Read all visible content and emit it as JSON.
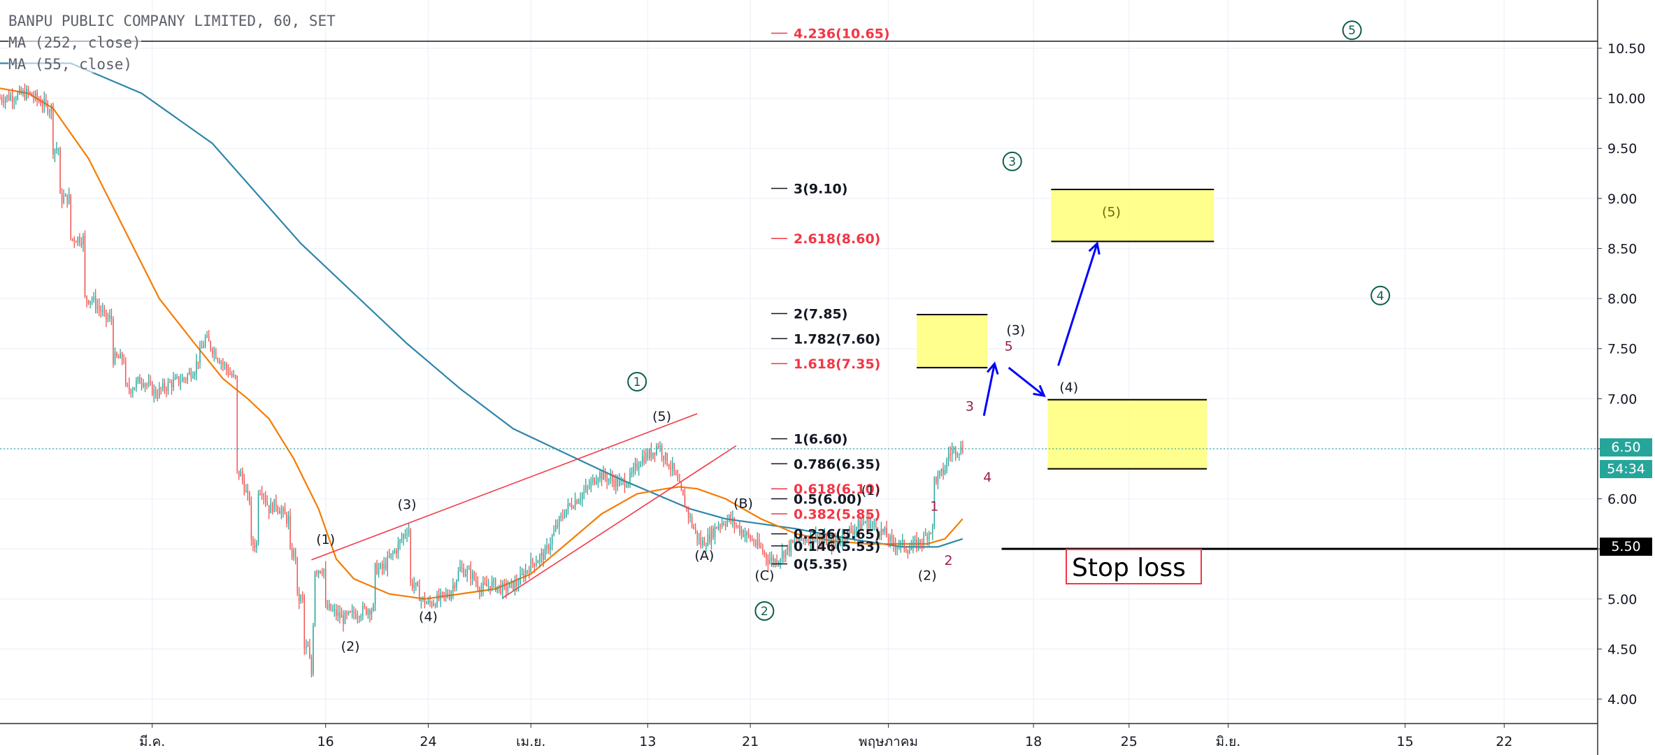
{
  "header": {
    "title": "BANPU PUBLIC COMPANY LIMITED, 60, SET",
    "ma1": "MA (252, close)",
    "ma2": "MA (55, close)"
  },
  "price_tags": {
    "last_price": "6.50",
    "countdown": "54:34",
    "stop_price": "5.50"
  },
  "colors": {
    "up_candle": "#26a69a",
    "down_candle": "#ef5350",
    "ma252": "#2e86ab",
    "ma55": "#f57c00",
    "fib_black": "#131722",
    "fib_red": "#f23645",
    "wave_red": "#9c1b4c",
    "arrow": "#0000ff",
    "target_box": "#ffff7a",
    "last_price_tag": "#26a69a",
    "stop_tag": "#000000"
  },
  "chart_data": {
    "type": "candlestick",
    "timeframe": "60",
    "y_axis": {
      "ticks": [
        "4.00",
        "4.50",
        "5.00",
        "5.50",
        "6.00",
        "6.50",
        "7.00",
        "7.50",
        "8.00",
        "8.50",
        "9.00",
        "9.50",
        "10.00",
        "10.50"
      ],
      "ylim": [
        3.8,
        10.8
      ]
    },
    "x_axis": {
      "ticks": [
        {
          "label": "มี.ค.",
          "bar": 43
        },
        {
          "label": "16",
          "bar": 92
        },
        {
          "label": "24",
          "bar": 121
        },
        {
          "label": "เม.ย.",
          "bar": 150
        },
        {
          "label": "13",
          "bar": 183
        },
        {
          "label": "21",
          "bar": 212
        },
        {
          "label": "พฤษภาคม",
          "bar": 251
        },
        {
          "label": "18",
          "bar": 292
        },
        {
          "label": "25",
          "bar": 319
        },
        {
          "label": "มิ.ย.",
          "bar": 347
        },
        {
          "label": "15",
          "bar": 397
        },
        {
          "label": "22",
          "bar": 425
        }
      ],
      "xlim": [
        0,
        452
      ]
    },
    "price_path": [
      [
        0,
        10.0
      ],
      [
        8,
        10.05
      ],
      [
        14,
        9.9
      ],
      [
        16,
        9.5
      ],
      [
        18,
        9.0
      ],
      [
        22,
        8.6
      ],
      [
        26,
        8.0
      ],
      [
        30,
        7.8
      ],
      [
        34,
        7.4
      ],
      [
        37,
        7.1
      ],
      [
        40,
        7.2
      ],
      [
        44,
        7.05
      ],
      [
        48,
        7.15
      ],
      [
        52,
        7.2
      ],
      [
        55,
        7.3
      ],
      [
        58,
        7.6
      ],
      [
        60,
        7.5
      ],
      [
        63,
        7.35
      ],
      [
        66,
        7.2
      ],
      [
        68,
        6.25
      ],
      [
        70,
        6.0
      ],
      [
        72,
        5.55
      ],
      [
        74,
        6.1
      ],
      [
        76,
        5.9
      ],
      [
        78,
        5.95
      ],
      [
        81,
        5.8
      ],
      [
        83,
        5.45
      ],
      [
        85,
        5.0
      ],
      [
        87,
        4.5
      ],
      [
        88,
        4.25
      ],
      [
        89,
        5.3
      ],
      [
        91,
        5.3
      ],
      [
        93,
        4.9
      ],
      [
        95,
        4.85
      ],
      [
        97,
        4.8
      ],
      [
        100,
        4.85
      ],
      [
        104,
        4.9
      ],
      [
        108,
        5.3
      ],
      [
        112,
        5.5
      ],
      [
        115,
        5.7
      ],
      [
        117,
        5.15
      ],
      [
        119,
        5.0
      ],
      [
        121,
        4.95
      ],
      [
        124,
        5.0
      ],
      [
        127,
        5.05
      ],
      [
        130,
        5.3
      ],
      [
        133,
        5.25
      ],
      [
        136,
        5.1
      ],
      [
        139,
        5.15
      ],
      [
        142,
        5.1
      ],
      [
        146,
        5.15
      ],
      [
        150,
        5.35
      ],
      [
        154,
        5.45
      ],
      [
        157,
        5.7
      ],
      [
        160,
        5.9
      ],
      [
        163,
        6.0
      ],
      [
        166,
        6.1
      ],
      [
        169,
        6.25
      ],
      [
        172,
        6.2
      ],
      [
        175,
        6.15
      ],
      [
        178,
        6.2
      ],
      [
        181,
        6.4
      ],
      [
        184,
        6.45
      ],
      [
        186,
        6.55
      ],
      [
        188,
        6.4
      ],
      [
        190,
        6.3
      ],
      [
        192,
        6.1
      ],
      [
        194,
        5.9
      ],
      [
        196,
        5.7
      ],
      [
        198,
        5.55
      ],
      [
        200,
        5.6
      ],
      [
        203,
        5.75
      ],
      [
        206,
        5.8
      ],
      [
        209,
        5.7
      ],
      [
        212,
        5.6
      ],
      [
        215,
        5.5
      ],
      [
        217,
        5.4
      ],
      [
        219,
        5.38
      ],
      [
        221,
        5.45
      ],
      [
        224,
        5.55
      ],
      [
        227,
        5.6
      ],
      [
        230,
        5.62
      ],
      [
        233,
        5.58
      ],
      [
        236,
        5.55
      ],
      [
        239,
        5.65
      ],
      [
        242,
        5.72
      ],
      [
        245,
        5.78
      ],
      [
        248,
        5.7
      ],
      [
        250,
        5.65
      ],
      [
        252,
        5.55
      ],
      [
        254,
        5.55
      ],
      [
        257,
        5.5
      ],
      [
        259,
        5.55
      ],
      [
        261,
        5.6
      ],
      [
        263,
        5.7
      ],
      [
        265,
        6.2
      ],
      [
        267,
        6.3
      ],
      [
        268,
        6.45
      ],
      [
        270,
        6.5
      ],
      [
        272,
        6.5
      ]
    ],
    "series": [
      {
        "name": "MA (252, close)",
        "points": [
          [
            0,
            10.35
          ],
          [
            20,
            10.35
          ],
          [
            40,
            10.05
          ],
          [
            60,
            9.55
          ],
          [
            70,
            9.15
          ],
          [
            85,
            8.55
          ],
          [
            100,
            8.05
          ],
          [
            115,
            7.55
          ],
          [
            130,
            7.1
          ],
          [
            145,
            6.7
          ],
          [
            160,
            6.45
          ],
          [
            175,
            6.2
          ],
          [
            185,
            6.05
          ],
          [
            195,
            5.9
          ],
          [
            205,
            5.8
          ],
          [
            215,
            5.75
          ],
          [
            225,
            5.7
          ],
          [
            240,
            5.6
          ],
          [
            255,
            5.52
          ],
          [
            265,
            5.52
          ],
          [
            272,
            5.6
          ]
        ]
      },
      {
        "name": "MA (55, close)",
        "points": [
          [
            0,
            10.1
          ],
          [
            8,
            10.05
          ],
          [
            15,
            9.9
          ],
          [
            25,
            9.4
          ],
          [
            35,
            8.7
          ],
          [
            45,
            8.0
          ],
          [
            55,
            7.55
          ],
          [
            63,
            7.2
          ],
          [
            70,
            7.0
          ],
          [
            76,
            6.8
          ],
          [
            83,
            6.4
          ],
          [
            90,
            5.9
          ],
          [
            95,
            5.4
          ],
          [
            100,
            5.2
          ],
          [
            110,
            5.05
          ],
          [
            120,
            5.0
          ],
          [
            130,
            5.05
          ],
          [
            140,
            5.1
          ],
          [
            150,
            5.25
          ],
          [
            160,
            5.55
          ],
          [
            170,
            5.85
          ],
          [
            180,
            6.05
          ],
          [
            188,
            6.1
          ],
          [
            192,
            6.12
          ],
          [
            197,
            6.1
          ],
          [
            205,
            6.0
          ],
          [
            215,
            5.8
          ],
          [
            225,
            5.65
          ],
          [
            235,
            5.58
          ],
          [
            245,
            5.55
          ],
          [
            255,
            5.55
          ],
          [
            262,
            5.55
          ],
          [
            267,
            5.6
          ],
          [
            272,
            5.8
          ]
        ]
      }
    ],
    "fib_levels": [
      {
        "label": "4.236(10.65)",
        "value": 10.65,
        "color": "red"
      },
      {
        "label": "3(9.10)",
        "value": 9.1,
        "color": "black"
      },
      {
        "label": "2.618(8.60)",
        "value": 8.6,
        "color": "red"
      },
      {
        "label": "2(7.85)",
        "value": 7.85,
        "color": "black"
      },
      {
        "label": "1.782(7.60)",
        "value": 7.6,
        "color": "black"
      },
      {
        "label": "1.618(7.35)",
        "value": 7.35,
        "color": "red"
      },
      {
        "label": "1(6.60)",
        "value": 6.6,
        "color": "black"
      },
      {
        "label": "0.786(6.35)",
        "value": 6.35,
        "color": "black"
      },
      {
        "label": "0.618(6.10)",
        "value": 6.1,
        "color": "red"
      },
      {
        "label": "0.5(6.00)",
        "value": 6.0,
        "color": "black"
      },
      {
        "label": "0.382(5.85)",
        "value": 5.85,
        "color": "red"
      },
      {
        "label": "0.236(5.65)",
        "value": 5.65,
        "color": "black"
      },
      {
        "label": "0.146(5.53)",
        "value": 5.53,
        "color": "black"
      },
      {
        "label": "0(5.35)",
        "value": 5.35,
        "color": "black"
      }
    ],
    "wave_labels": [
      {
        "text": "(1)",
        "x": 92,
        "y": 5.55,
        "style": "black"
      },
      {
        "text": "(2)",
        "x": 99,
        "y": 4.48,
        "style": "black"
      },
      {
        "text": "(3)",
        "x": 115,
        "y": 5.9,
        "style": "black"
      },
      {
        "text": "(4)",
        "x": 121,
        "y": 4.78,
        "style": "black"
      },
      {
        "text": "(5)",
        "x": 187,
        "y": 6.78,
        "style": "black"
      },
      {
        "text": "(A)",
        "x": 199,
        "y": 5.39,
        "style": "black"
      },
      {
        "text": "(B)",
        "x": 210,
        "y": 5.91,
        "style": "black"
      },
      {
        "text": "(C)",
        "x": 216,
        "y": 5.19,
        "style": "black"
      },
      {
        "text": "(1)",
        "x": 246,
        "y": 6.04,
        "style": "black"
      },
      {
        "text": "(2)",
        "x": 262,
        "y": 5.19,
        "style": "black"
      },
      {
        "text": "(3)",
        "x": 287,
        "y": 7.64,
        "style": "black"
      },
      {
        "text": "(4)",
        "x": 302,
        "y": 7.07,
        "style": "black"
      },
      {
        "text": "(5)",
        "x": 314,
        "y": 8.82,
        "style": "olive"
      },
      {
        "text": "1",
        "x": 264,
        "y": 5.88,
        "style": "red"
      },
      {
        "text": "2",
        "x": 268,
        "y": 5.34,
        "style": "red"
      },
      {
        "text": "3",
        "x": 274,
        "y": 6.88,
        "style": "red"
      },
      {
        "text": "4",
        "x": 279,
        "y": 6.17,
        "style": "red"
      },
      {
        "text": "5",
        "x": 285,
        "y": 7.48,
        "style": "red"
      }
    ],
    "circled_labels": [
      {
        "text": "1",
        "x": 180,
        "y": 7.17
      },
      {
        "text": "2",
        "x": 216,
        "y": 4.88
      },
      {
        "text": "3",
        "x": 286,
        "y": 9.37
      },
      {
        "text": "4",
        "x": 390,
        "y": 8.03
      },
      {
        "text": "5",
        "x": 382,
        "y": 10.68
      }
    ],
    "trend_lines": [
      {
        "from": [
          88,
          5.39
        ],
        "to": [
          197,
          6.85
        ]
      },
      {
        "from": [
          142,
          5.01
        ],
        "to": [
          208,
          6.53
        ]
      }
    ],
    "target_boxes": [
      {
        "x1": 259,
        "x2": 279,
        "y1": 7.31,
        "y2": 7.84
      },
      {
        "x1": 296,
        "x2": 341,
        "y1": 6.3,
        "y2": 6.99
      },
      {
        "x1": 297,
        "x2": 343,
        "y1": 8.57,
        "y2": 9.09
      }
    ],
    "projection_arrows": [
      [
        [
          278,
          6.83
        ],
        [
          281,
          7.35
        ]
      ],
      [
        [
          285,
          7.31
        ],
        [
          295,
          7.03
        ]
      ],
      [
        [
          299,
          7.33
        ],
        [
          310,
          8.55
        ]
      ]
    ],
    "stop_loss": {
      "label": "Stop loss",
      "value": 5.5,
      "from_bar": 283
    },
    "last_price": 6.5
  }
}
